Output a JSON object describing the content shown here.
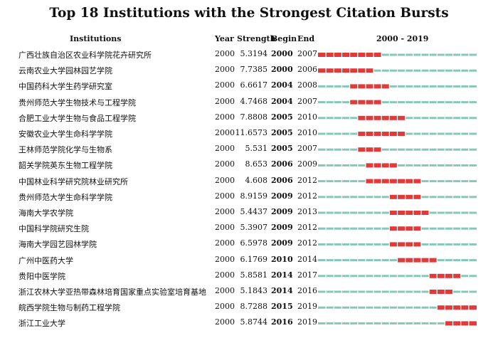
{
  "title": "Top 18 Institutions with the Strongest Citation Bursts",
  "chart_data": {
    "type": "table",
    "columns": [
      "Institutions",
      "Year",
      "Strength",
      "Begin",
      "End",
      "2000 - 2019"
    ],
    "timeline": {
      "start": 2000,
      "end": 2019
    },
    "colors": {
      "burst": "#e03b3b",
      "base": "#86c8b8"
    },
    "rows": [
      {
        "institution": "广西壮族自治区农业科学院花卉研究所",
        "year": "2000",
        "strength": "5.3194",
        "begin": "2000",
        "end": "2007"
      },
      {
        "institution": "云南农业大学园林园艺学院",
        "year": "2000",
        "strength": "7.7385",
        "begin": "2000",
        "end": "2006"
      },
      {
        "institution": "中国药科大学生药学研究室",
        "year": "2000",
        "strength": "6.6617",
        "begin": "2004",
        "end": "2008"
      },
      {
        "institution": "贵州师范大学生物技术与工程学院",
        "year": "2000",
        "strength": "4.7468",
        "begin": "2004",
        "end": "2007"
      },
      {
        "institution": "合肥工业大学生物与食品工程学院",
        "year": "2000",
        "strength": "7.8808",
        "begin": "2005",
        "end": "2010"
      },
      {
        "institution": "安徽农业大学生命科学学院",
        "year": "2000",
        "strength": "11.6573",
        "begin": "2005",
        "end": "2010"
      },
      {
        "institution": "王林师范学院化学与生物系",
        "year": "2000",
        "strength": "5.531",
        "begin": "2005",
        "end": "2007"
      },
      {
        "institution": "韶关学院英东生物工程学院",
        "year": "2000",
        "strength": "8.653",
        "begin": "2006",
        "end": "2009"
      },
      {
        "institution": "中国林业科学研究院林业研究所",
        "year": "2000",
        "strength": "4.608",
        "begin": "2006",
        "end": "2012"
      },
      {
        "institution": "贵州师范大学生命科学学院",
        "year": "2000",
        "strength": "8.9159",
        "begin": "2009",
        "end": "2012"
      },
      {
        "institution": "海南大学农学院",
        "year": "2000",
        "strength": "5.4437",
        "begin": "2009",
        "end": "2013"
      },
      {
        "institution": "中国科学院研究生院",
        "year": "2000",
        "strength": "5.3907",
        "begin": "2009",
        "end": "2012"
      },
      {
        "institution": "海南大学园艺园林学院",
        "year": "2000",
        "strength": "6.5978",
        "begin": "2009",
        "end": "2012"
      },
      {
        "institution": "广州中医药大学",
        "year": "2000",
        "strength": "6.1769",
        "begin": "2010",
        "end": "2014"
      },
      {
        "institution": "贵阳中医学院",
        "year": "2000",
        "strength": "5.8581",
        "begin": "2014",
        "end": "2017"
      },
      {
        "institution": "浙江农林大学亚热带森林培育国家重点实验室培育基地",
        "year": "2000",
        "strength": "5.1843",
        "begin": "2014",
        "end": "2016"
      },
      {
        "institution": "皖西学院生物与制药工程学院",
        "year": "2000",
        "strength": "8.7288",
        "begin": "2015",
        "end": "2019"
      },
      {
        "institution": "浙江工业大学",
        "year": "2000",
        "strength": "5.8744",
        "begin": "2016",
        "end": "2019"
      }
    ]
  }
}
